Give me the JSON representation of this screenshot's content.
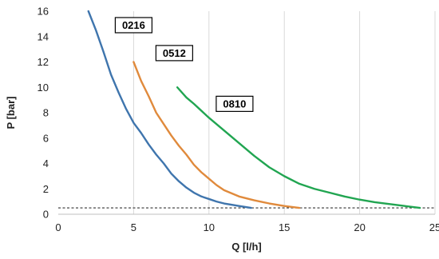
{
  "chart_data": {
    "type": "line",
    "xlabel": "Q [l/h]",
    "ylabel": "P [bar]",
    "xlim": [
      0,
      25
    ],
    "ylim": [
      0,
      16
    ],
    "x_ticks": [
      "0",
      "5",
      "10",
      "15",
      "20",
      "25"
    ],
    "y_ticks": [
      "0",
      "2",
      "4",
      "6",
      "8",
      "10",
      "12",
      "14",
      "16"
    ],
    "grid": "vertical",
    "reference_line": {
      "y": 0.5,
      "style": "dashed"
    },
    "series": [
      {
        "name": "0216",
        "color": "#3f75ad",
        "points": [
          [
            2.0,
            16
          ],
          [
            2.5,
            14.5
          ],
          [
            3.0,
            12.8
          ],
          [
            3.5,
            11.0
          ],
          [
            4.0,
            9.6
          ],
          [
            4.5,
            8.3
          ],
          [
            5.0,
            7.2
          ],
          [
            5.5,
            6.4
          ],
          [
            6.0,
            5.5
          ],
          [
            6.5,
            4.7
          ],
          [
            7.0,
            4.0
          ],
          [
            7.5,
            3.2
          ],
          [
            8.0,
            2.6
          ],
          [
            8.5,
            2.1
          ],
          [
            9.0,
            1.7
          ],
          [
            9.5,
            1.4
          ],
          [
            10.0,
            1.2
          ],
          [
            10.5,
            1.0
          ],
          [
            11.0,
            0.85
          ],
          [
            12.0,
            0.65
          ],
          [
            12.8,
            0.5
          ]
        ]
      },
      {
        "name": "0512",
        "color": "#e08a3c",
        "points": [
          [
            5.0,
            12
          ],
          [
            5.5,
            10.5
          ],
          [
            6.0,
            9.3
          ],
          [
            6.5,
            8.0
          ],
          [
            7.0,
            7.1
          ],
          [
            7.5,
            6.2
          ],
          [
            8.0,
            5.4
          ],
          [
            8.5,
            4.7
          ],
          [
            9.0,
            3.9
          ],
          [
            9.5,
            3.3
          ],
          [
            10.0,
            2.8
          ],
          [
            10.5,
            2.3
          ],
          [
            11.0,
            1.9
          ],
          [
            12.0,
            1.4
          ],
          [
            13.0,
            1.1
          ],
          [
            14.0,
            0.85
          ],
          [
            15.0,
            0.65
          ],
          [
            16.0,
            0.5
          ]
        ]
      },
      {
        "name": "0810",
        "color": "#21a551",
        "points": [
          [
            7.9,
            10
          ],
          [
            8.5,
            9.2
          ],
          [
            9.0,
            8.7
          ],
          [
            10.0,
            7.6
          ],
          [
            11.0,
            6.6
          ],
          [
            12.0,
            5.6
          ],
          [
            13.0,
            4.6
          ],
          [
            14.0,
            3.7
          ],
          [
            15.0,
            3.0
          ],
          [
            16.0,
            2.4
          ],
          [
            17.0,
            2.0
          ],
          [
            18.0,
            1.7
          ],
          [
            19.0,
            1.4
          ],
          [
            20.0,
            1.15
          ],
          [
            21.0,
            0.95
          ],
          [
            22.0,
            0.8
          ],
          [
            23.0,
            0.65
          ],
          [
            24.0,
            0.5
          ]
        ]
      }
    ],
    "curve_labels": [
      {
        "text": "0216",
        "x": 5.0,
        "y": 14.9
      },
      {
        "text": "0512",
        "x": 7.7,
        "y": 12.7
      },
      {
        "text": "0810",
        "x": 11.7,
        "y": 8.7
      }
    ]
  }
}
